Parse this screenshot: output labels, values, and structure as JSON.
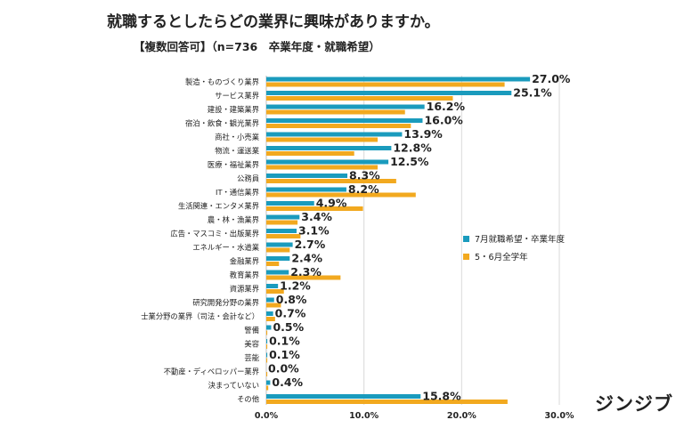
{
  "title": "就職するとしたらどの業界に興味がありますか。",
  "subtitle": "【複数回答可】（n=736　卒業年度・就職希望）",
  "logo": "ジンジブ",
  "colors": {
    "series1": "#1a9bbd",
    "series2": "#f2a91f",
    "grid": "#d9d9d9"
  },
  "chart_data": {
    "type": "bar",
    "orientation": "horizontal",
    "categories": [
      "製造・ものづくり業界",
      "サービス業界",
      "建設・建築業界",
      "宿泊・飲食・観光業界",
      "商社・小売業",
      "物流・運送業",
      "医療・福祉業界",
      "公務員",
      "IT・通信業界",
      "生活関連・エンタメ業界",
      "農・林・漁業界",
      "広告・マスコミ・出版業界",
      "エネルギー・水道業",
      "金融業界",
      "教育業界",
      "資源業界",
      "研究開発分野の業界",
      "士業分野の業界（司法・会計など）",
      "警備",
      "美容",
      "芸能",
      "不動産・ディベロッパー業界",
      "決まっていない",
      "その他"
    ],
    "series": [
      {
        "name": "7月就職希望・卒業年度",
        "values": [
          27.0,
          25.1,
          16.2,
          16.0,
          13.9,
          12.8,
          12.5,
          8.3,
          8.2,
          4.9,
          3.4,
          3.1,
          2.7,
          2.4,
          2.3,
          1.2,
          0.8,
          0.7,
          0.5,
          0.1,
          0.1,
          0.0,
          0.4,
          15.8
        ]
      },
      {
        "name": "5・6月全学年",
        "values": [
          24.4,
          19.1,
          14.2,
          14.8,
          11.4,
          9.0,
          11.4,
          13.3,
          15.3,
          9.9,
          3.2,
          3.5,
          2.4,
          1.3,
          7.6,
          1.8,
          1.5,
          0.9,
          0.1,
          0.1,
          0.1,
          0.1,
          0.2,
          24.7
        ]
      }
    ],
    "data_labels": [
      "27.0%",
      "25.1%",
      "16.2%",
      "16.0%",
      "13.9%",
      "12.8%",
      "12.5%",
      "8.3%",
      "8.2%",
      "4.9%",
      "3.4%",
      "3.1%",
      "2.7%",
      "2.4%",
      "2.3%",
      "1.2%",
      "0.8%",
      "0.7%",
      "0.5%",
      "0.1%",
      "0.1%",
      "0.0%",
      "0.4%",
      "15.8%"
    ],
    "x_ticks": [
      "0.0%",
      "10.0%",
      "20.0%",
      "30.0%"
    ],
    "xlim": [
      0,
      30
    ],
    "grid": true,
    "legend_position": "right"
  }
}
